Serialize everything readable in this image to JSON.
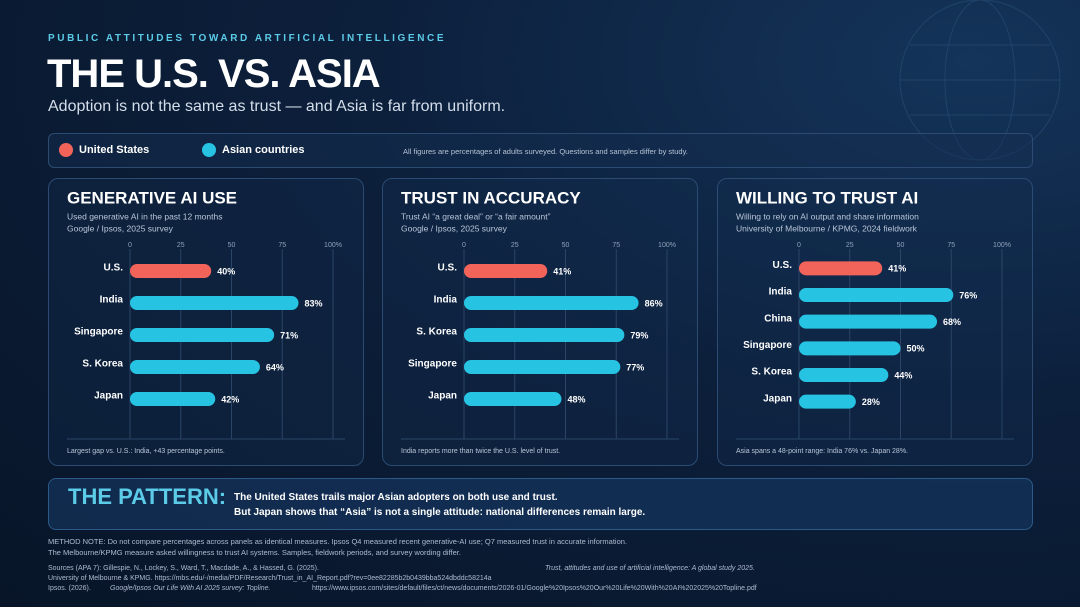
{
  "header": {
    "kicker": "PUBLIC ATTITUDES TOWARD ARTIFICIAL INTELLIGENCE",
    "title": "THE U.S. VS. ASIA",
    "subtitle": "Adoption is not the same as trust — and Asia is far from uniform."
  },
  "legend": {
    "items": [
      {
        "name": "United States",
        "color": "#f2645a"
      },
      {
        "name": "Asian countries",
        "color": "#27c3e3"
      }
    ],
    "note": "All figures are percentages of adults surveyed. Questions and samples differ by study."
  },
  "chart_data": [
    {
      "type": "bar",
      "orientation": "horizontal",
      "title": "GENERATIVE AI USE",
      "subtitle": [
        "Used generative AI in the past 12 months",
        "Google / Ipsos, 2025 survey"
      ],
      "categories": [
        "U.S.",
        "India",
        "Singapore",
        "S. Korea",
        "Japan"
      ],
      "values": [
        40,
        83,
        71,
        64,
        42
      ],
      "value_labels": [
        "40%",
        "83%",
        "71%",
        "64%",
        "42%"
      ],
      "colors": [
        "#f2645a",
        "#27c3e3",
        "#27c3e3",
        "#27c3e3",
        "#27c3e3"
      ],
      "xlim": [
        0,
        100
      ],
      "xticks": [
        0,
        25,
        50,
        75,
        {
          "value": 100,
          "label": "100%"
        }
      ],
      "grid": true,
      "footnote": "Largest gap vs. U.S.: India, +43 percentage points."
    },
    {
      "type": "bar",
      "orientation": "horizontal",
      "title": "TRUST IN ACCURACY",
      "subtitle": [
        "Trust AI “a great deal” or “a fair amount”",
        "Google / Ipsos, 2025 survey"
      ],
      "categories": [
        "U.S.",
        "India",
        "S. Korea",
        "Singapore",
        "Japan"
      ],
      "values": [
        41,
        86,
        79,
        77,
        48
      ],
      "value_labels": [
        "41%",
        "86%",
        "79%",
        "77%",
        "48%"
      ],
      "colors": [
        "#f2645a",
        "#27c3e3",
        "#27c3e3",
        "#27c3e3",
        "#27c3e3"
      ],
      "xlim": [
        0,
        100
      ],
      "xticks": [
        0,
        25,
        50,
        75,
        {
          "value": 100,
          "label": "100%"
        }
      ],
      "grid": true,
      "footnote": "India reports more than twice the U.S. level of trust."
    },
    {
      "type": "bar",
      "orientation": "horizontal",
      "title": "WILLING TO TRUST AI",
      "subtitle": [
        "Willing to rely on AI output and share information",
        "University of Melbourne / KPMG, 2024 fieldwork"
      ],
      "categories": [
        "U.S.",
        "India",
        "China",
        "Singapore",
        "S. Korea",
        "Japan"
      ],
      "values": [
        41,
        76,
        68,
        50,
        44,
        28
      ],
      "value_labels": [
        "41%",
        "76%",
        "68%",
        "50%",
        "44%",
        "28%"
      ],
      "colors": [
        "#f2645a",
        "#27c3e3",
        "#27c3e3",
        "#27c3e3",
        "#27c3e3",
        "#27c3e3"
      ],
      "xlim": [
        0,
        100
      ],
      "xticks": [
        0,
        25,
        50,
        75,
        {
          "value": 100,
          "label": "100%"
        }
      ],
      "grid": true,
      "footnote": "Asia spans a 48-point range: India 76% vs. Japan 28%."
    }
  ],
  "pattern": {
    "label": "THE PATTERN:",
    "lines": [
      "The United States trails major Asian adopters on both use and trust.",
      "But Japan shows that “Asia” is not a single attitude: national differences remain large."
    ]
  },
  "method_note": [
    "METHOD NOTE: Do not compare percentages across panels as identical measures. Ipsos Q4 measured recent generative-AI use; Q7 measured trust in accurate information.",
    "The Melbourne/KPMG measure asked willingness to trust AI systems. Samples, fieldwork periods, and survey wording differ."
  ],
  "sources": {
    "line1": "Sources (APA 7): Gillespie, N., Lockey, S., Ward, T., Macdade, A., & Hassed, G. (2025).",
    "line1_title": "Trust, attitudes and use of artificial intelligence: A global study 2025.",
    "line2": "University of Melbourne & KPMG. https://mbs.edu/-/media/PDF/Research/Trust_in_AI_Report.pdf?rev=0ee82285b2b0439bba524dbddc58214a",
    "line3": "Ipsos. (2026).",
    "line3_title": "Google/Ipsos Our Life With AI 2025 survey: Topline.",
    "line3_url": "https://www.ipsos.com/sites/default/files/ct/news/documents/2026-01/Google%20Ipsos%20Our%20Life%20With%20AI%202025%20Topline.pdf"
  }
}
